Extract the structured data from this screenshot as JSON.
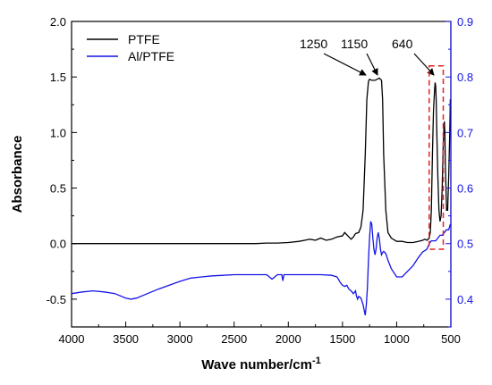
{
  "chart_data": {
    "type": "line",
    "xlabel_base": "Wave number/cm",
    "xlabel_sup": "-1",
    "ylabel": "Absorbance",
    "xlim": [
      4000,
      500
    ],
    "xticks": [
      "4000",
      "3500",
      "3000",
      "2500",
      "2000",
      "1500",
      "1000",
      "500"
    ],
    "ylim_left": [
      -0.75,
      2.0
    ],
    "yticks_left": [
      "-0.5",
      "0.0",
      "0.5",
      "1.0",
      "1.5",
      "2.0"
    ],
    "ylim_right": [
      0.35,
      0.9
    ],
    "yticks_right": [
      "0.4",
      "0.5",
      "0.6",
      "0.7",
      "0.8",
      "0.9"
    ],
    "legend_position": "top-left",
    "series": [
      {
        "name": "PTFE",
        "axis": "left",
        "color": "#000000",
        "x": [
          4000,
          3800,
          3600,
          3400,
          3200,
          3000,
          2800,
          2600,
          2400,
          2300,
          2200,
          2100,
          2000,
          1900,
          1850,
          1800,
          1750,
          1700,
          1650,
          1600,
          1550,
          1500,
          1480,
          1460,
          1440,
          1420,
          1400,
          1380,
          1350,
          1330,
          1310,
          1290,
          1275,
          1260,
          1250,
          1230,
          1200,
          1180,
          1160,
          1150,
          1140,
          1130,
          1120,
          1100,
          1080,
          1050,
          1000,
          950,
          900,
          850,
          800,
          760,
          740,
          720,
          700,
          690,
          680,
          670,
          660,
          650,
          645,
          640,
          635,
          630,
          620,
          610,
          600,
          590,
          580,
          570,
          560,
          555,
          550,
          540,
          530,
          520,
          510,
          505
        ],
        "values": [
          0.0,
          0.0,
          0.0,
          0.0,
          0.0,
          0.0,
          0.0,
          0.0,
          0.0,
          0.0,
          0.005,
          0.005,
          0.01,
          0.02,
          0.03,
          0.04,
          0.03,
          0.05,
          0.03,
          0.04,
          0.06,
          0.07,
          0.1,
          0.08,
          0.06,
          0.04,
          0.06,
          0.09,
          0.1,
          0.15,
          0.3,
          0.8,
          1.3,
          1.46,
          1.48,
          1.47,
          1.47,
          1.48,
          1.49,
          1.48,
          1.47,
          1.3,
          0.8,
          0.3,
          0.1,
          0.05,
          0.02,
          0.02,
          0.01,
          0.01,
          0.02,
          0.03,
          0.04,
          0.03,
          0.05,
          0.1,
          0.3,
          0.8,
          1.2,
          1.38,
          1.45,
          1.42,
          1.3,
          1.0,
          0.6,
          0.3,
          0.2,
          0.25,
          0.5,
          0.9,
          1.1,
          1.0,
          0.7,
          0.3,
          0.3,
          0.6,
          1.0,
          1.3
        ]
      },
      {
        "name": "Al/PTFE",
        "axis": "right",
        "color": "#1414e6",
        "x": [
          4000,
          3900,
          3800,
          3700,
          3600,
          3500,
          3450,
          3400,
          3300,
          3200,
          3100,
          3000,
          2900,
          2800,
          2700,
          2600,
          2500,
          2400,
          2300,
          2200,
          2150,
          2100,
          2060,
          2050,
          2040,
          2000,
          1900,
          1800,
          1700,
          1600,
          1550,
          1520,
          1500,
          1480,
          1460,
          1440,
          1420,
          1400,
          1390,
          1380,
          1370,
          1360,
          1350,
          1330,
          1310,
          1300,
          1290,
          1280,
          1270,
          1260,
          1250,
          1240,
          1230,
          1220,
          1210,
          1200,
          1190,
          1180,
          1170,
          1160,
          1150,
          1140,
          1130,
          1120,
          1100,
          1080,
          1050,
          1000,
          950,
          900,
          850,
          800,
          760,
          720,
          700,
          680,
          660,
          640,
          620,
          600,
          580,
          560,
          540,
          520,
          505
        ],
        "values": [
          0.41,
          0.413,
          0.415,
          0.413,
          0.41,
          0.402,
          0.4,
          0.402,
          0.41,
          0.418,
          0.425,
          0.432,
          0.438,
          0.44,
          0.442,
          0.443,
          0.444,
          0.444,
          0.444,
          0.444,
          0.436,
          0.444,
          0.444,
          0.433,
          0.444,
          0.444,
          0.444,
          0.444,
          0.444,
          0.443,
          0.44,
          0.43,
          0.425,
          0.423,
          0.425,
          0.418,
          0.415,
          0.41,
          0.412,
          0.415,
          0.405,
          0.4,
          0.405,
          0.402,
          0.39,
          0.38,
          0.371,
          0.39,
          0.42,
          0.47,
          0.51,
          0.54,
          0.535,
          0.51,
          0.49,
          0.48,
          0.49,
          0.51,
          0.52,
          0.51,
          0.49,
          0.48,
          0.484,
          0.486,
          0.482,
          0.47,
          0.455,
          0.44,
          0.44,
          0.45,
          0.46,
          0.475,
          0.485,
          0.49,
          0.5,
          0.505,
          0.505,
          0.505,
          0.51,
          0.515,
          0.515,
          0.52,
          0.525,
          0.525,
          0.535
        ]
      }
    ],
    "annotations": [
      {
        "text": "1250",
        "target_x": 1255,
        "target_y": 1.5
      },
      {
        "text": "1150",
        "target_x": 1160,
        "target_y": 1.5
      },
      {
        "text": "640",
        "target_x": 640,
        "target_y": 1.55
      }
    ],
    "highlight_box": {
      "x_from": 700,
      "x_to": 570,
      "y_from": -0.05,
      "y_to": 1.6,
      "color": "#e62020"
    }
  }
}
